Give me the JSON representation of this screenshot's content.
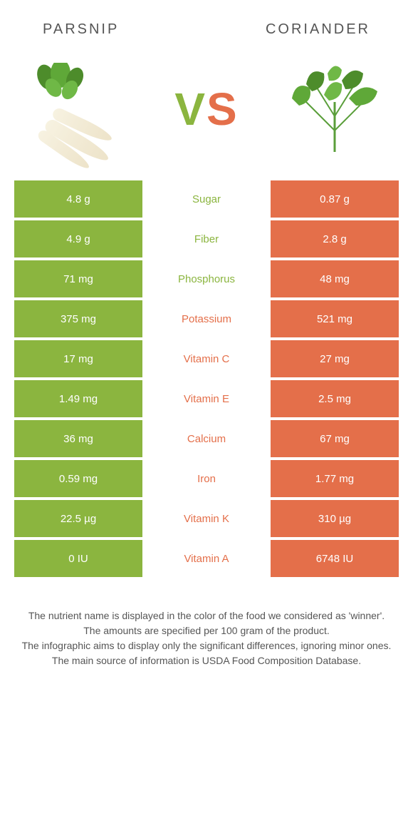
{
  "header": {
    "left": "PARSNIP",
    "right": "CORIANDER"
  },
  "vs": {
    "v": "V",
    "s": "S"
  },
  "colors": {
    "left": "#8bb53f",
    "right": "#e46f4a",
    "leaf": "#5a9e3a",
    "parsnip_root": "#f0e8d2"
  },
  "rows": [
    {
      "left": "4.8 g",
      "label": "Sugar",
      "right": "0.87 g",
      "winner": "left"
    },
    {
      "left": "4.9 g",
      "label": "Fiber",
      "right": "2.8 g",
      "winner": "left"
    },
    {
      "left": "71 mg",
      "label": "Phosphorus",
      "right": "48 mg",
      "winner": "left"
    },
    {
      "left": "375 mg",
      "label": "Potassium",
      "right": "521 mg",
      "winner": "right"
    },
    {
      "left": "17 mg",
      "label": "Vitamin C",
      "right": "27 mg",
      "winner": "right"
    },
    {
      "left": "1.49 mg",
      "label": "Vitamin E",
      "right": "2.5 mg",
      "winner": "right"
    },
    {
      "left": "36 mg",
      "label": "Calcium",
      "right": "67 mg",
      "winner": "right"
    },
    {
      "left": "0.59 mg",
      "label": "Iron",
      "right": "1.77 mg",
      "winner": "right"
    },
    {
      "left": "22.5 µg",
      "label": "Vitamin K",
      "right": "310 µg",
      "winner": "right"
    },
    {
      "left": "0 IU",
      "label": "Vitamin A",
      "right": "6748 IU",
      "winner": "right"
    }
  ],
  "footer": {
    "line1": "The nutrient name is displayed in the color of the food we considered as 'winner'.",
    "line2": "The amounts are specified per 100 gram of the product.",
    "line3": "The infographic aims to display only the significant differences, ignoring minor ones.",
    "line4": "The main source of information is USDA Food Composition Database."
  }
}
